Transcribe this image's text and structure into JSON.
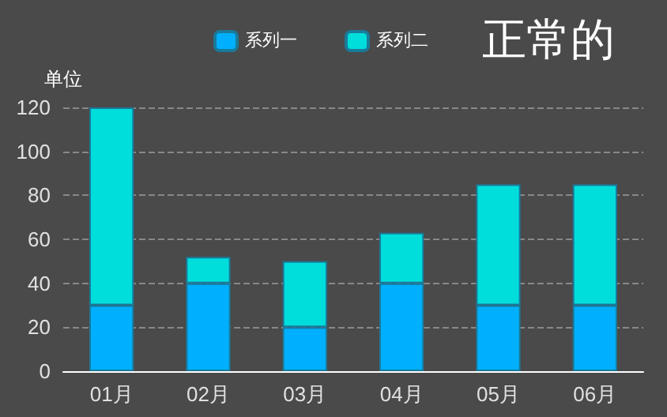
{
  "chart_data": {
    "type": "bar",
    "title": "正常的",
    "ylabel": "单位",
    "categories": [
      "01月",
      "02月",
      "03月",
      "04月",
      "05月",
      "06月"
    ],
    "stacked": true,
    "series": [
      {
        "name": "系列一",
        "color": "#00b0ff",
        "values": [
          30,
          40,
          20,
          40,
          30,
          30
        ]
      },
      {
        "name": "系列二",
        "color": "#00dedc",
        "values": [
          90,
          12,
          30,
          23,
          55,
          55
        ]
      }
    ],
    "ylim": [
      0,
      120
    ],
    "yticks": [
      0,
      20,
      40,
      60,
      80,
      100,
      120
    ],
    "grid": "y",
    "legend": "top"
  }
}
